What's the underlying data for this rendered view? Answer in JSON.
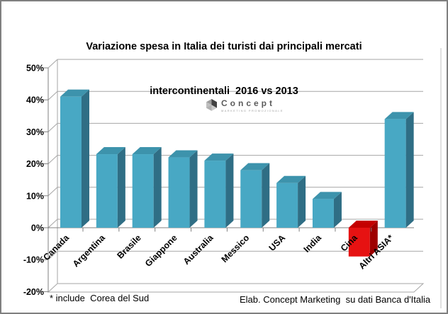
{
  "title": {
    "line1": "Variazione spesa in Italia dei turisti dai principali mercati",
    "line2": "intercontinentali  2016 vs 2013"
  },
  "watermark": {
    "name": "Concept",
    "subtext": "MARKETING PROMOZIONALE",
    "icon": "cube-icon"
  },
  "footnotes": {
    "left": "* include  Corea del Sud",
    "right": "Elab. Concept Marketing  su dati Banca d'Italia"
  },
  "colors": {
    "bar_front": "#48a8c4",
    "bar_side": "#2f6e85",
    "bar_top": "#3d93ac",
    "negative_front": "#e61212",
    "negative_side": "#9e0000",
    "negative_top": "#c40000",
    "gridline": "#a6a6a6",
    "axis": "#808080",
    "frame_border": "#7f7f7f"
  },
  "chart_data": {
    "type": "bar",
    "style": "3d-column",
    "title": "Variazione spesa in Italia dei turisti dai principali mercati intercontinentali 2016 vs 2013",
    "categories": [
      "Canada",
      "Argentina",
      "Brasile",
      "Giappone",
      "Australia",
      "Messico",
      "USA",
      "India",
      "Cina",
      "Altri ASIA*"
    ],
    "values": [
      41,
      23,
      23,
      22,
      21,
      18,
      14,
      9,
      -9,
      34
    ],
    "unit": "%",
    "xlabel": "",
    "ylabel": "",
    "ylim": [
      -20,
      50
    ],
    "ytick_step": 10,
    "ytick_labels": [
      "50%",
      "40%",
      "30%",
      "20%",
      "10%",
      "0%",
      "-10%",
      "-20%"
    ],
    "grid": "on",
    "legend": "none",
    "negative_bar_categories": [
      "Cina"
    ],
    "footnote": "* include Corea del Sud",
    "source": "Elab. Concept Marketing su dati Banca d'Italia"
  }
}
